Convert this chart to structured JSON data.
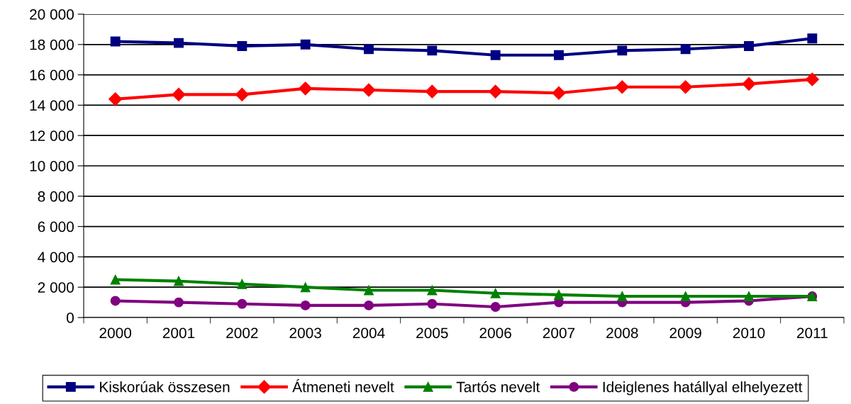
{
  "chart_data": {
    "type": "line",
    "categories": [
      "2000",
      "2001",
      "2002",
      "2003",
      "2004",
      "2005",
      "2006",
      "2007",
      "2008",
      "2009",
      "2010",
      "2011"
    ],
    "series": [
      {
        "name": "Kiskorúak összesen",
        "color": "#000080",
        "marker": "square",
        "values": [
          18200,
          18100,
          17900,
          18000,
          17700,
          17600,
          17300,
          17300,
          17600,
          17700,
          17900,
          18400
        ]
      },
      {
        "name": "Átmeneti nevelt",
        "color": "#ff0000",
        "marker": "diamond",
        "values": [
          14400,
          14700,
          14700,
          15100,
          15000,
          14900,
          14900,
          14800,
          15200,
          15200,
          15400,
          15700
        ]
      },
      {
        "name": "Tartós nevelt",
        "color": "#008000",
        "marker": "triangle",
        "values": [
          2500,
          2400,
          2200,
          2000,
          1800,
          1800,
          1600,
          1500,
          1400,
          1400,
          1400,
          1400
        ]
      },
      {
        "name": "Ideiglenes hatállyal elhelyezett",
        "color": "#800080",
        "marker": "circle",
        "values": [
          1100,
          1000,
          900,
          800,
          800,
          900,
          700,
          1000,
          1000,
          1000,
          1100,
          1400
        ]
      }
    ],
    "ylim": [
      0,
      20000
    ],
    "yticks": [
      0,
      {
        "value": 2000,
        "label": "2 000"
      },
      {
        "value": 4000,
        "label": "4 000"
      },
      {
        "value": 6000,
        "label": "6 000"
      },
      {
        "value": 8000,
        "label": "8 000"
      },
      {
        "value": 10000,
        "label": "10 000"
      },
      {
        "value": 12000,
        "label": "12 000"
      },
      {
        "value": 14000,
        "label": "14 000"
      },
      {
        "value": 16000,
        "label": "16 000"
      },
      {
        "value": 18000,
        "label": "18 000"
      },
      {
        "value": 20000,
        "label": "20 000"
      }
    ],
    "grid": "y",
    "legend": "bottom"
  }
}
